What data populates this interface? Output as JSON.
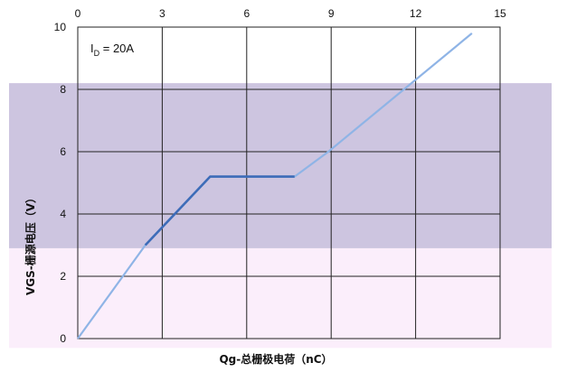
{
  "chart_data": {
    "type": "line",
    "xlabel": "Qg-总栅极电荷（nC）",
    "ylabel": "VGS-栅源电压（V）",
    "annotation": "I_D = 20A",
    "annotation_main": "I",
    "annotation_sub": "D",
    "annotation_rest": " = 20A",
    "xlim": [
      0,
      15
    ],
    "ylim": [
      0,
      10
    ],
    "xticks": [
      "0",
      "3",
      "6",
      "9",
      "12",
      "15"
    ],
    "yticks": [
      "0",
      "2",
      "4",
      "6",
      "8",
      "10"
    ],
    "grid": true,
    "x_axis_position": "top",
    "colors": {
      "band_upper": "#cdc5e0",
      "band_lower": "#fbeefb",
      "line_light": "#8fb4e6",
      "line_dark": "#3d6cb8",
      "grid": "#222222"
    },
    "bands": [
      {
        "name": "upper",
        "y_from": 2.9,
        "y_to": 8.2
      },
      {
        "name": "lower",
        "y_from": -0.3,
        "y_to": 2.9
      }
    ],
    "series": [
      {
        "x": [
          0,
          2.4,
          4.7,
          7.7,
          8.9,
          14.0
        ],
        "y": [
          0,
          3.0,
          5.2,
          5.2,
          6.0,
          9.8
        ]
      }
    ]
  }
}
